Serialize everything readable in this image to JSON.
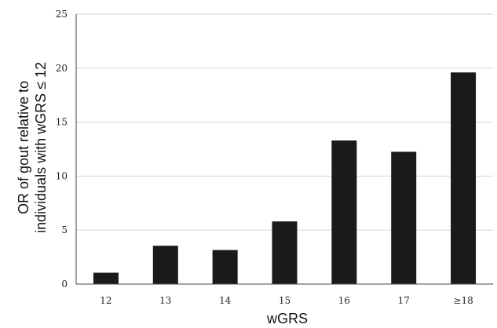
{
  "chart_data": {
    "type": "bar",
    "categories": [
      "12",
      "13",
      "14",
      "15",
      "16",
      "17",
      "≥18"
    ],
    "values": [
      1.05,
      3.55,
      3.15,
      5.8,
      13.3,
      12.25,
      19.6
    ],
    "ylim": [
      0,
      25
    ],
    "yticks": [
      0,
      5,
      10,
      15,
      20,
      25
    ],
    "ylabel_lines": [
      "OR of gout relative to",
      "individuals with wGRS ≤ 12"
    ],
    "xlabel": "wGRS",
    "grid": true,
    "bar_color": "#1a1a1a"
  }
}
